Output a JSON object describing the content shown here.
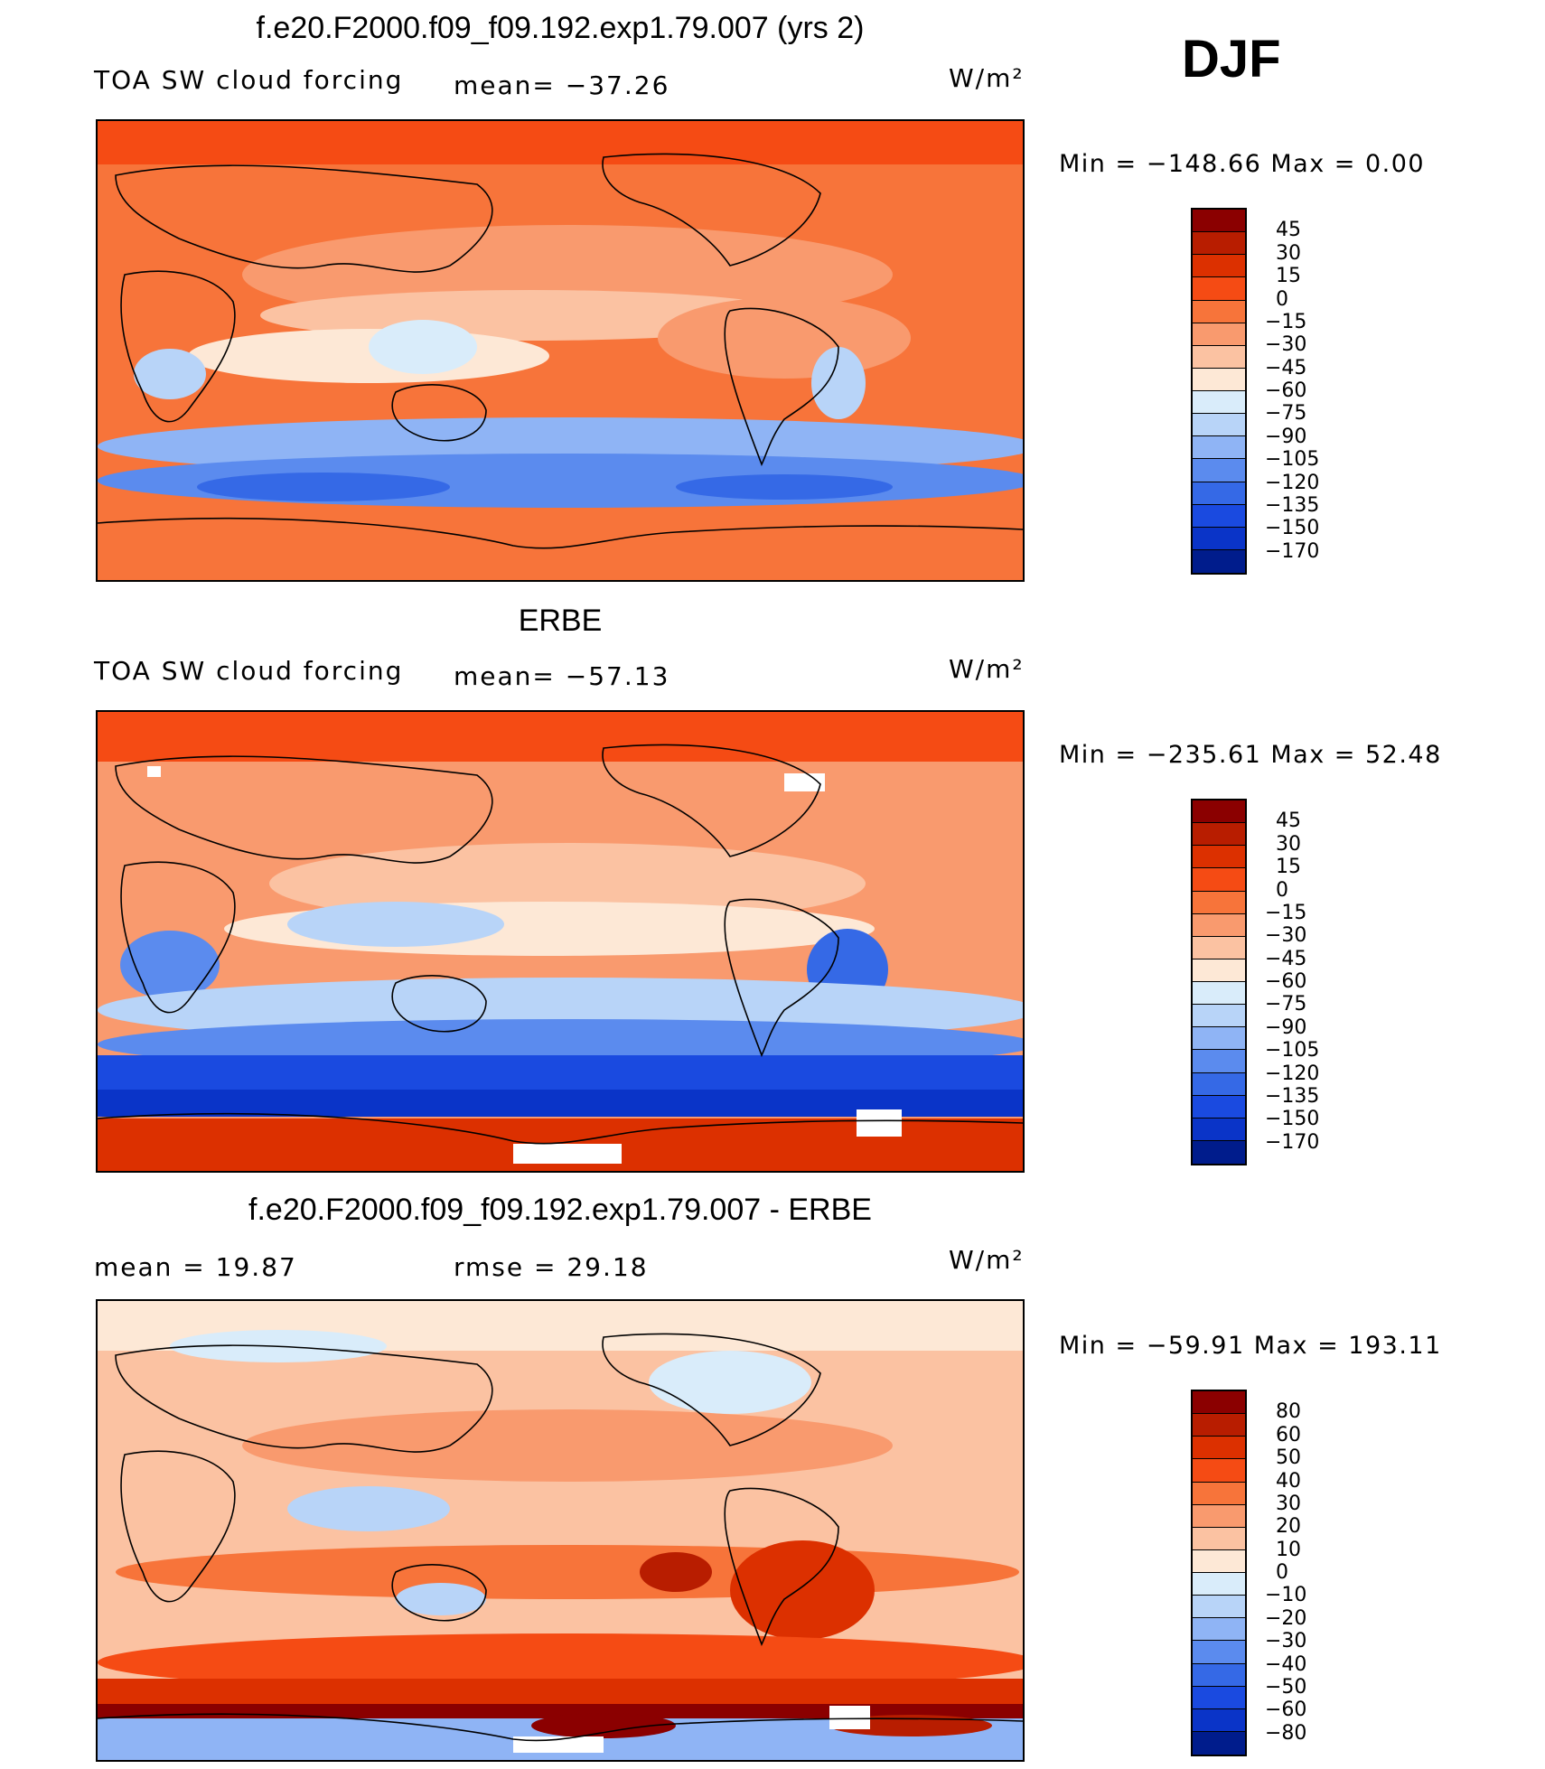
{
  "season": "DJF",
  "panels": [
    {
      "title": "f.e20.F2000.f09_f09.192.exp1.79.007 (yrs 2)",
      "left_label": "TOA SW cloud forcing",
      "center_label": "mean=  −37.26",
      "units": "W/m²",
      "minmax": "Min  =  −148.66  Max  =     0.00",
      "colorbar": {
        "labels": [
          "45",
          "30",
          "15",
          "0",
          "−15",
          "−30",
          "−45",
          "−60",
          "−75",
          "−90",
          "−105",
          "−120",
          "−135",
          "−150",
          "−170"
        ],
        "colors": [
          "#8b0000",
          "#b81d00",
          "#dc3000",
          "#f54b14",
          "#f7743a",
          "#f99a6e",
          "#fbc2a2",
          "#fde8d6",
          "#d9ecfa",
          "#b8d4f8",
          "#8fb4f5",
          "#5b8bee",
          "#3569e6",
          "#1a4ae0",
          "#0a34c8",
          "#001c8c"
        ]
      },
      "map_note": "model TOA SW cloud forcing, range -148.66 to 0.00 W/m²"
    },
    {
      "title": "ERBE",
      "left_label": "TOA SW cloud forcing",
      "center_label": "mean=  −57.13",
      "units": "W/m²",
      "minmax": "Min  =  −235.61  Max  =   52.48",
      "colorbar": {
        "labels": [
          "45",
          "30",
          "15",
          "0",
          "−15",
          "−30",
          "−45",
          "−60",
          "−75",
          "−90",
          "−105",
          "−120",
          "−135",
          "−150",
          "−170"
        ],
        "colors": [
          "#8b0000",
          "#b81d00",
          "#dc3000",
          "#f54b14",
          "#f7743a",
          "#f99a6e",
          "#fbc2a2",
          "#fde8d6",
          "#d9ecfa",
          "#b8d4f8",
          "#8fb4f5",
          "#5b8bee",
          "#3569e6",
          "#1a4ae0",
          "#0a34c8",
          "#001c8c"
        ]
      },
      "map_note": "ERBE TOA SW cloud forcing, range -235.61 to 52.48 W/m²"
    },
    {
      "title": "f.e20.F2000.f09_f09.192.exp1.79.007 - ERBE",
      "left_label": "mean  =     19.87",
      "center_label": "rmse  =     29.18",
      "units": "W/m²",
      "minmax": "Min  =  −59.91  Max  =  193.11",
      "colorbar": {
        "labels": [
          "80",
          "60",
          "50",
          "40",
          "30",
          "20",
          "10",
          "0",
          "−10",
          "−20",
          "−30",
          "−40",
          "−50",
          "−60",
          "−80"
        ],
        "colors": [
          "#8b0000",
          "#b81d00",
          "#dc3000",
          "#f54b14",
          "#f7743a",
          "#f99a6e",
          "#fbc2a2",
          "#fde8d6",
          "#d9ecfa",
          "#b8d4f8",
          "#8fb4f5",
          "#5b8bee",
          "#3569e6",
          "#1a4ae0",
          "#0a34c8",
          "#001c8c"
        ]
      },
      "map_note": "difference model minus ERBE, range -59.91 to 193.11 W/m²"
    }
  ]
}
